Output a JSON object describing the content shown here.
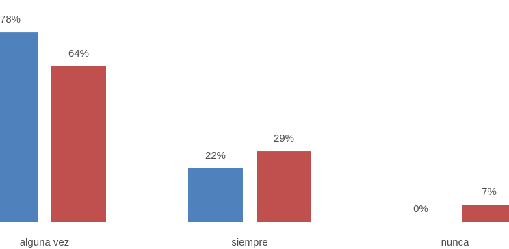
{
  "chart_data": {
    "type": "bar",
    "categories": [
      "alguna vez",
      "siempre",
      "nunca"
    ],
    "series": [
      {
        "values": [
          78,
          22,
          0
        ],
        "labels": [
          "78%",
          "22%",
          "0%"
        ],
        "color": "#4f81bd"
      },
      {
        "values": [
          64,
          29,
          7
        ],
        "labels": [
          "64%",
          "29%",
          "7%"
        ],
        "color": "#c0504d"
      }
    ],
    "unit": "%",
    "ylim": [
      0,
      78
    ],
    "grid": false,
    "legend": "none"
  }
}
